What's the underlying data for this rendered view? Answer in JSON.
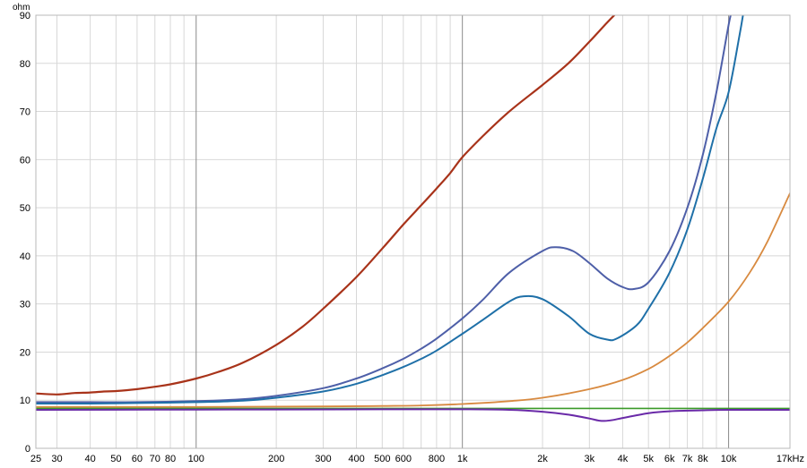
{
  "chart_data": {
    "type": "line",
    "title": "",
    "xlabel": "",
    "ylabel": "ohm",
    "x_unit": "kHz",
    "x_scale": "log",
    "xlim": [
      25,
      17000
    ],
    "ylim": [
      0,
      90
    ],
    "grid": true,
    "x_ticks": [
      {
        "v": 25,
        "label": "25",
        "major": false
      },
      {
        "v": 30,
        "label": "30",
        "major": false
      },
      {
        "v": 40,
        "label": "40",
        "major": false
      },
      {
        "v": 50,
        "label": "50",
        "major": false
      },
      {
        "v": 60,
        "label": "60",
        "major": false
      },
      {
        "v": 70,
        "label": "70",
        "major": false
      },
      {
        "v": 80,
        "label": "80",
        "major": false
      },
      {
        "v": 90,
        "label": "",
        "major": false
      },
      {
        "v": 100,
        "label": "100",
        "major": true
      },
      {
        "v": 200,
        "label": "200",
        "major": false
      },
      {
        "v": 300,
        "label": "300",
        "major": false
      },
      {
        "v": 400,
        "label": "400",
        "major": false
      },
      {
        "v": 500,
        "label": "500",
        "major": false
      },
      {
        "v": 600,
        "label": "600",
        "major": false
      },
      {
        "v": 700,
        "label": "",
        "major": false
      },
      {
        "v": 800,
        "label": "800",
        "major": false
      },
      {
        "v": 900,
        "label": "",
        "major": false
      },
      {
        "v": 1000,
        "label": "1k",
        "major": true
      },
      {
        "v": 2000,
        "label": "2k",
        "major": false
      },
      {
        "v": 3000,
        "label": "3k",
        "major": false
      },
      {
        "v": 4000,
        "label": "4k",
        "major": false
      },
      {
        "v": 5000,
        "label": "5k",
        "major": false
      },
      {
        "v": 6000,
        "label": "6k",
        "major": false
      },
      {
        "v": 7000,
        "label": "7k",
        "major": false
      },
      {
        "v": 8000,
        "label": "8k",
        "major": false
      },
      {
        "v": 9000,
        "label": "",
        "major": false
      },
      {
        "v": 10000,
        "label": "10k",
        "major": true
      },
      {
        "v": 17000,
        "label": "17kHz",
        "major": false
      }
    ],
    "y_ticks": [
      0,
      10,
      20,
      30,
      40,
      50,
      60,
      70,
      80,
      90
    ],
    "series": [
      {
        "color": "#a8331a",
        "width": 2.2,
        "points": [
          [
            25,
            11.4
          ],
          [
            30,
            11.2
          ],
          [
            35,
            11.5
          ],
          [
            40,
            11.6
          ],
          [
            45,
            11.8
          ],
          [
            50,
            11.9
          ],
          [
            60,
            12.3
          ],
          [
            70,
            12.8
          ],
          [
            80,
            13.3
          ],
          [
            100,
            14.5
          ],
          [
            120,
            15.8
          ],
          [
            150,
            17.8
          ],
          [
            200,
            21.5
          ],
          [
            250,
            25.2
          ],
          [
            300,
            29
          ],
          [
            400,
            35.6
          ],
          [
            500,
            41.5
          ],
          [
            600,
            46.5
          ],
          [
            700,
            50.5
          ],
          [
            800,
            54
          ],
          [
            900,
            57.2
          ],
          [
            1000,
            60.5
          ],
          [
            1200,
            65
          ],
          [
            1500,
            70
          ],
          [
            2000,
            75.5
          ],
          [
            2500,
            80
          ],
          [
            3000,
            84.5
          ],
          [
            3500,
            88.5
          ],
          [
            3800,
            90.5
          ]
        ]
      },
      {
        "color": "#4e5fa8",
        "width": 2.0,
        "points": [
          [
            25,
            9.6
          ],
          [
            40,
            9.6
          ],
          [
            60,
            9.6
          ],
          [
            100,
            9.8
          ],
          [
            150,
            10.2
          ],
          [
            200,
            10.9
          ],
          [
            300,
            12.5
          ],
          [
            400,
            14.5
          ],
          [
            500,
            16.6
          ],
          [
            600,
            18.6
          ],
          [
            700,
            20.7
          ],
          [
            800,
            22.8
          ],
          [
            1000,
            27
          ],
          [
            1200,
            31
          ],
          [
            1500,
            36.5
          ],
          [
            2000,
            41
          ],
          [
            2250,
            41.8
          ],
          [
            2600,
            41
          ],
          [
            3000,
            38.5
          ],
          [
            3500,
            35.3
          ],
          [
            4000,
            33.5
          ],
          [
            4400,
            33.1
          ],
          [
            5000,
            34.5
          ],
          [
            6000,
            41
          ],
          [
            7000,
            50
          ],
          [
            8000,
            61
          ],
          [
            9000,
            74
          ],
          [
            10000,
            88
          ],
          [
            10300,
            91
          ]
        ]
      },
      {
        "color": "#1f70a8",
        "width": 2.0,
        "points": [
          [
            25,
            9.3
          ],
          [
            40,
            9.3
          ],
          [
            60,
            9.4
          ],
          [
            100,
            9.6
          ],
          [
            150,
            9.9
          ],
          [
            200,
            10.5
          ],
          [
            300,
            11.8
          ],
          [
            400,
            13.4
          ],
          [
            500,
            15.2
          ],
          [
            600,
            16.9
          ],
          [
            700,
            18.6
          ],
          [
            800,
            20.3
          ],
          [
            1000,
            23.8
          ],
          [
            1200,
            26.8
          ],
          [
            1500,
            30.5
          ],
          [
            1700,
            31.6
          ],
          [
            2000,
            31
          ],
          [
            2500,
            27.5
          ],
          [
            3000,
            23.8
          ],
          [
            3500,
            22.6
          ],
          [
            3800,
            22.8
          ],
          [
            4500,
            25.5
          ],
          [
            5000,
            29
          ],
          [
            6000,
            36.5
          ],
          [
            7000,
            45.5
          ],
          [
            8000,
            56
          ],
          [
            9000,
            66.5
          ],
          [
            10000,
            74
          ],
          [
            11000,
            86
          ],
          [
            11400,
            91
          ]
        ]
      },
      {
        "color": "#d88a40",
        "width": 1.8,
        "points": [
          [
            25,
            8.6
          ],
          [
            100,
            8.6
          ],
          [
            300,
            8.7
          ],
          [
            500,
            8.8
          ],
          [
            700,
            8.9
          ],
          [
            1000,
            9.2
          ],
          [
            1500,
            9.8
          ],
          [
            2000,
            10.5
          ],
          [
            3000,
            12.3
          ],
          [
            4000,
            14.2
          ],
          [
            5000,
            16.5
          ],
          [
            6000,
            19.2
          ],
          [
            7000,
            22
          ],
          [
            8000,
            25
          ],
          [
            10000,
            30.5
          ],
          [
            12000,
            36.5
          ],
          [
            14000,
            43
          ],
          [
            17000,
            53
          ]
        ]
      },
      {
        "color": "#3a9a28",
        "width": 1.6,
        "points": [
          [
            25,
            8.3
          ],
          [
            1000,
            8.3
          ],
          [
            17000,
            8.3
          ]
        ]
      },
      {
        "color": "#6a2aa8",
        "width": 2.0,
        "points": [
          [
            25,
            8.0
          ],
          [
            100,
            8.05
          ],
          [
            500,
            8.1
          ],
          [
            1000,
            8.1
          ],
          [
            1500,
            8.0
          ],
          [
            2000,
            7.6
          ],
          [
            2500,
            7.0
          ],
          [
            3000,
            6.2
          ],
          [
            3300,
            5.7
          ],
          [
            3600,
            5.8
          ],
          [
            4000,
            6.3
          ],
          [
            5000,
            7.3
          ],
          [
            6000,
            7.7
          ],
          [
            8000,
            7.9
          ],
          [
            10000,
            8.0
          ],
          [
            17000,
            8.0
          ]
        ]
      }
    ]
  }
}
